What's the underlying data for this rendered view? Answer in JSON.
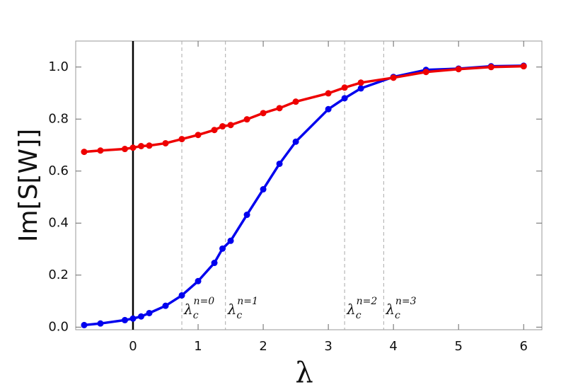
{
  "chart_data": {
    "type": "line",
    "xlabel": "λ",
    "ylabel": "Im[S[W]]",
    "x": [
      -0.75,
      -0.5,
      -0.125,
      0,
      0.125,
      0.25,
      0.5,
      0.75,
      1,
      1.25,
      1.375,
      1.5,
      1.75,
      2,
      2.25,
      2.5,
      3,
      3.25,
      3.5,
      4,
      4.5,
      5,
      5.5,
      6
    ],
    "series": [
      {
        "color": "#0000ee",
        "values": [
          0.008,
          0.014,
          0.027,
          0.033,
          0.041,
          0.054,
          0.082,
          0.122,
          0.177,
          0.247,
          0.302,
          0.332,
          0.432,
          0.53,
          0.628,
          0.713,
          0.838,
          0.88,
          0.918,
          0.962,
          0.989,
          0.994,
          1.003,
          1.005
        ]
      },
      {
        "color": "#ee0000",
        "values": [
          0.674,
          0.679,
          0.685,
          0.69,
          0.696,
          0.698,
          0.707,
          0.723,
          0.739,
          0.758,
          0.772,
          0.777,
          0.799,
          0.823,
          0.842,
          0.867,
          0.899,
          0.921,
          0.94,
          0.959,
          0.981,
          0.992,
          1.0,
          1.003
        ]
      }
    ],
    "xlim": [
      -0.88,
      6.28
    ],
    "ylim": [
      -0.01,
      1.1
    ],
    "xticks": [
      0,
      1,
      2,
      3,
      4,
      5,
      6
    ],
    "yticks": [
      {
        "value": 0,
        "label": "0.0"
      },
      {
        "value": 0.2,
        "label": "0.2"
      },
      {
        "value": 0.4,
        "label": "0.4"
      },
      {
        "value": 0.6,
        "label": "0.6"
      },
      {
        "value": 0.8,
        "label": "0.8"
      },
      {
        "value": 1.0,
        "label": "1.0"
      }
    ],
    "vlines": [
      {
        "x": 0.75,
        "base": "λ",
        "sub": "c",
        "sup": "n=0"
      },
      {
        "x": 1.42,
        "base": "λ",
        "sub": "c",
        "sup": "n=1"
      },
      {
        "x": 3.25,
        "base": "λ",
        "sub": "c",
        "sup": "n=2"
      },
      {
        "x": 3.85,
        "base": "λ",
        "sub": "c",
        "sup": "n=3"
      }
    ]
  }
}
